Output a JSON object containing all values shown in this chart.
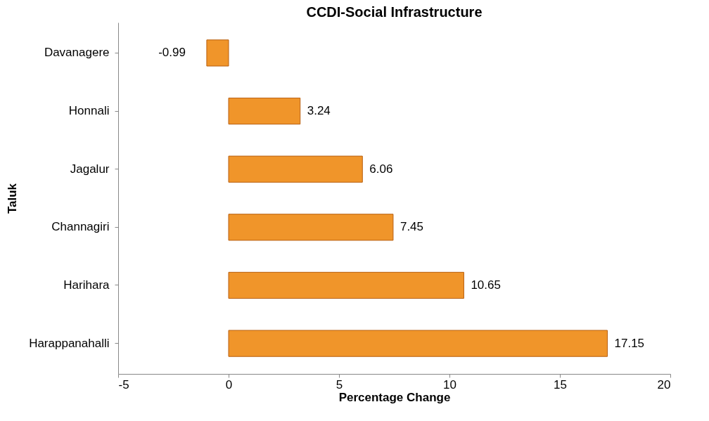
{
  "chart_data": {
    "type": "bar",
    "orientation": "horizontal",
    "title": "CCDI-Social Infrastructure",
    "xlabel": "Percentage Change",
    "ylabel": "Taluk",
    "categories": [
      "Davanagere",
      "Honnali",
      "Jagalur",
      "Channagiri",
      "Harihara",
      "Harappanahalli"
    ],
    "values": [
      -0.99,
      3.24,
      6.06,
      7.45,
      10.65,
      17.15
    ],
    "color": "#f0952a",
    "xlim": [
      -5,
      20
    ],
    "xticks": [
      -5,
      0,
      5,
      10,
      15,
      20
    ],
    "data_labels": true,
    "grid": false
  }
}
